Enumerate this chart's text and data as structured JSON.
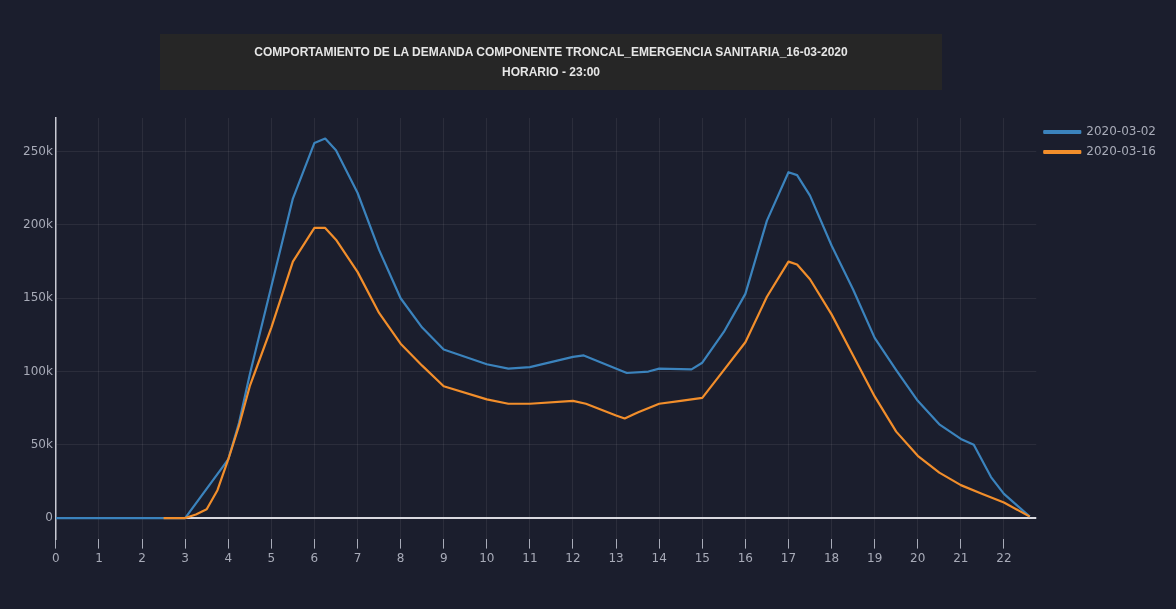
{
  "chart_data": {
    "type": "line",
    "title": "COMPORTAMIENTO DE LA DEMANDA COMPONENTE TRONCAL_EMERGENCIA SANITARIA_16-03-2020",
    "subtitle": "HORARIO - 23:00",
    "xlim": [
      0,
      22.75
    ],
    "xticks": [
      0,
      1,
      2,
      3,
      4,
      5,
      6,
      7,
      8,
      9,
      10,
      11,
      12,
      13,
      14,
      15,
      16,
      17,
      18,
      19,
      20,
      21,
      22
    ],
    "ylim": [
      -14000,
      273000
    ],
    "yticks": [
      {
        "value": 0,
        "label": "0"
      },
      {
        "value": 50000,
        "label": "50k"
      },
      {
        "value": 100000,
        "label": "100k"
      },
      {
        "value": 150000,
        "label": "150k"
      },
      {
        "value": 200000,
        "label": "200k"
      },
      {
        "value": 250000,
        "label": "250k"
      }
    ],
    "grid": true,
    "legend": "top right",
    "marker": "none",
    "line_style": "solid",
    "series": [
      {
        "name": "2020-03-02",
        "color": "#3b83bd",
        "x": [
          0,
          1,
          2,
          2.5,
          3,
          4,
          4.25,
          4.5,
          5,
          5.5,
          6,
          6.25,
          6.5,
          7,
          7.5,
          8,
          8.5,
          9,
          10,
          10.5,
          11,
          12,
          12.25,
          12.75,
          13.25,
          13.75,
          14,
          14.75,
          15,
          15.5,
          16,
          16.5,
          17,
          17.2,
          17.5,
          18,
          18.5,
          19,
          19.5,
          20,
          20.5,
          21,
          21.3,
          21.7,
          22,
          22.6
        ],
        "values": [
          0,
          0,
          0,
          0,
          0,
          40000,
          65000,
          98000,
          158000,
          218000,
          256000,
          259000,
          251000,
          222000,
          183000,
          150000,
          130000,
          115000,
          105000,
          102000,
          103000,
          110000,
          111000,
          105000,
          99000,
          100000,
          102000,
          101500,
          106000,
          127000,
          153000,
          203000,
          236000,
          234000,
          220000,
          186000,
          156000,
          123000,
          101000,
          80000,
          64000,
          54000,
          50000,
          28000,
          16500,
          1000
        ]
      },
      {
        "name": "2020-03-16",
        "color": "#f28e2b",
        "x": [
          2.5,
          3,
          3.25,
          3.5,
          3.75,
          4,
          4.25,
          4.5,
          5,
          5.5,
          6,
          6.25,
          6.5,
          7,
          7.5,
          8,
          8.5,
          9,
          10,
          10.5,
          11,
          12,
          12.3,
          13,
          13.2,
          13.5,
          14,
          14.5,
          15,
          15.5,
          16,
          16.5,
          17,
          17.2,
          17.5,
          18,
          18.5,
          19,
          19.5,
          20,
          20.5,
          21,
          21.5,
          22,
          22.6
        ],
        "values": [
          0,
          0,
          2500,
          6000,
          19000,
          40000,
          63000,
          90000,
          130000,
          175000,
          198000,
          198000,
          190000,
          168000,
          140000,
          119000,
          104000,
          90000,
          81000,
          78000,
          78000,
          80000,
          78000,
          70000,
          68000,
          72000,
          78000,
          80000,
          82000,
          101000,
          120000,
          151000,
          175000,
          173000,
          163000,
          139000,
          111000,
          83000,
          59000,
          42500,
          31000,
          22500,
          16500,
          10600,
          1000
        ]
      }
    ]
  }
}
